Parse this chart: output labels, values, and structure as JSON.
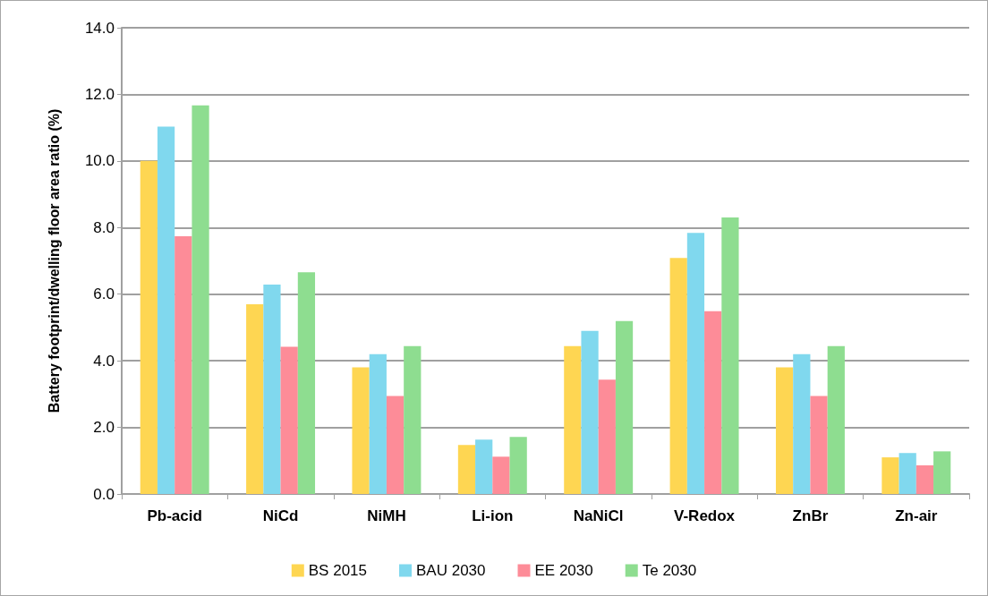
{
  "chart_data": {
    "type": "bar",
    "ylabel": "Battery footprint/dwelling floor area ratio (%)",
    "categories": [
      "Pb-acid",
      "NiCd",
      "NiMH",
      "Li-ion",
      "NaNiCl",
      "V-Redox",
      "ZnBr",
      "Zn-air"
    ],
    "series": [
      {
        "name": "BS 2015",
        "color": "#fed652",
        "values": [
          10.0,
          5.7,
          3.8,
          1.47,
          4.44,
          7.09,
          3.8,
          1.1
        ]
      },
      {
        "name": "BAU 2030",
        "color": "#80d8ee",
        "values": [
          11.03,
          6.29,
          4.2,
          1.63,
          4.9,
          7.84,
          4.2,
          1.23
        ]
      },
      {
        "name": "EE 2030",
        "color": "#fd8c98",
        "values": [
          7.74,
          4.42,
          2.94,
          1.12,
          3.43,
          5.49,
          2.94,
          0.86
        ]
      },
      {
        "name": "Te 2030",
        "color": "#8edd90",
        "values": [
          11.67,
          6.66,
          4.44,
          1.71,
          5.19,
          8.3,
          4.44,
          1.28
        ]
      }
    ],
    "ylim": [
      0,
      14
    ],
    "yticks": [
      {
        "value": 0,
        "label": "0.0"
      },
      {
        "value": 2,
        "label": "2.0"
      },
      {
        "value": 4,
        "label": "4.0"
      },
      {
        "value": 6,
        "label": "6.0"
      },
      {
        "value": 8,
        "label": "8.0"
      },
      {
        "value": 10,
        "label": "10.0"
      },
      {
        "value": 12,
        "label": "12.0"
      },
      {
        "value": 14,
        "label": "14.0"
      }
    ],
    "grid": "y",
    "legend": "bottom"
  }
}
